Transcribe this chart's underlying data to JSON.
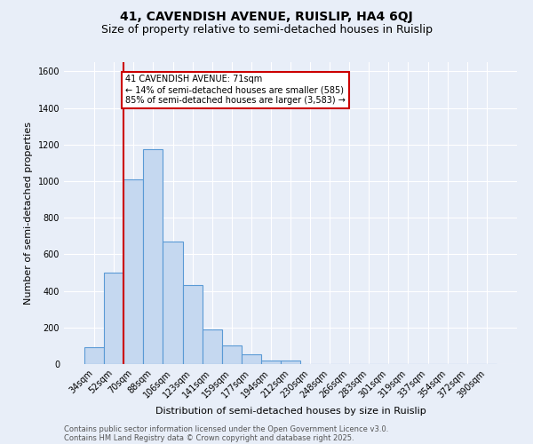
{
  "title1": "41, CAVENDISH AVENUE, RUISLIP, HA4 6QJ",
  "title2": "Size of property relative to semi-detached houses in Ruislip",
  "xlabel": "Distribution of semi-detached houses by size in Ruislip",
  "ylabel": "Number of semi-detached properties",
  "categories": [
    "34sqm",
    "52sqm",
    "70sqm",
    "88sqm",
    "106sqm",
    "123sqm",
    "141sqm",
    "159sqm",
    "177sqm",
    "194sqm",
    "212sqm",
    "230sqm",
    "248sqm",
    "266sqm",
    "283sqm",
    "301sqm",
    "319sqm",
    "337sqm",
    "354sqm",
    "372sqm",
    "390sqm"
  ],
  "values": [
    90,
    500,
    1010,
    1175,
    670,
    430,
    190,
    100,
    55,
    20,
    20,
    0,
    0,
    0,
    0,
    0,
    0,
    0,
    0,
    0,
    0
  ],
  "bar_color": "#c5d8f0",
  "bar_edge_color": "#5a9ad5",
  "bar_edge_width": 0.8,
  "property_line_idx": 2,
  "property_line_color": "#cc0000",
  "annotation_line1": "41 CAVENDISH AVENUE: 71sqm",
  "annotation_line2": "← 14% of semi-detached houses are smaller (585)",
  "annotation_line3": "85% of semi-detached houses are larger (3,583) →",
  "annotation_box_color": "#ffffff",
  "annotation_box_edge": "#cc0000",
  "ylim": [
    0,
    1650
  ],
  "yticks": [
    0,
    200,
    400,
    600,
    800,
    1000,
    1200,
    1400,
    1600
  ],
  "background_color": "#e8eef8",
  "footer_line1": "Contains HM Land Registry data © Crown copyright and database right 2025.",
  "footer_line2": "Contains public sector information licensed under the Open Government Licence v3.0.",
  "title1_fontsize": 10,
  "title2_fontsize": 9,
  "xlabel_fontsize": 8,
  "ylabel_fontsize": 8,
  "tick_fontsize": 7,
  "annotation_fontsize": 7,
  "footer_fontsize": 6
}
